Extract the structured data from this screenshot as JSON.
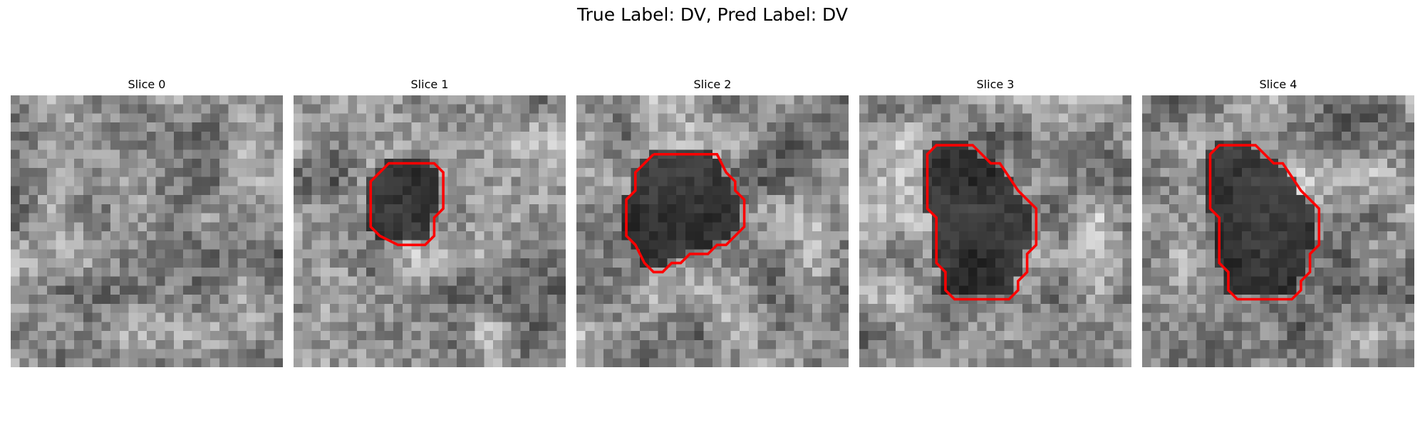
{
  "figure": {
    "title": "True Label: DV, Pred Label: DV",
    "colormap": "gray",
    "contour_color": "#ff0000"
  },
  "panels": [
    {
      "title": "Slice 0",
      "has_contour": false,
      "contour": []
    },
    {
      "title": "Slice 1",
      "has_contour": true,
      "contour": [
        [
          12.5,
          7.5
        ],
        [
          15.5,
          7.5
        ],
        [
          16.5,
          8.5
        ],
        [
          16.5,
          12.5
        ],
        [
          15.5,
          13.5
        ],
        [
          15.5,
          15.5
        ],
        [
          14.5,
          16.5
        ],
        [
          11.5,
          16.5
        ],
        [
          9.5,
          15.5
        ],
        [
          8.5,
          14.5
        ],
        [
          8.5,
          9.5
        ],
        [
          10.5,
          7.5
        ],
        [
          12.5,
          7.5
        ]
      ]
    },
    {
      "title": "Slice 2",
      "has_contour": true,
      "contour": [
        [
          8.5,
          6.5
        ],
        [
          15.5,
          6.5
        ],
        [
          16.5,
          8.5
        ],
        [
          17.5,
          9.5
        ],
        [
          17.5,
          10.5
        ],
        [
          18.5,
          11.5
        ],
        [
          18.5,
          14.5
        ],
        [
          17.5,
          15.5
        ],
        [
          16.5,
          16.5
        ],
        [
          15.5,
          16.5
        ],
        [
          14.5,
          17.5
        ],
        [
          12.5,
          17.5
        ],
        [
          11.5,
          18.5
        ],
        [
          10.5,
          18.5
        ],
        [
          9.5,
          19.5
        ],
        [
          8.5,
          19.5
        ],
        [
          7.5,
          18.5
        ],
        [
          6.5,
          16.5
        ],
        [
          5.5,
          15.5
        ],
        [
          5.5,
          11.5
        ],
        [
          6.5,
          10.5
        ],
        [
          6.5,
          8.5
        ],
        [
          7.5,
          7.5
        ],
        [
          8.5,
          6.5
        ]
      ]
    },
    {
      "title": "Slice 3",
      "has_contour": true,
      "contour": [
        [
          9.5,
          5.5
        ],
        [
          12.5,
          5.5
        ],
        [
          13.5,
          6.5
        ],
        [
          14.5,
          7.5
        ],
        [
          15.5,
          7.5
        ],
        [
          17.5,
          10.5
        ],
        [
          18.5,
          11.5
        ],
        [
          19.5,
          12.5
        ],
        [
          19.5,
          16.5
        ],
        [
          18.5,
          17.5
        ],
        [
          18.5,
          19.5
        ],
        [
          17.5,
          20.5
        ],
        [
          17.5,
          21.5
        ],
        [
          16.5,
          22.5
        ],
        [
          10.5,
          22.5
        ],
        [
          9.5,
          21.5
        ],
        [
          9.5,
          19.5
        ],
        [
          8.5,
          18.5
        ],
        [
          8.5,
          13.5
        ],
        [
          7.5,
          12.5
        ],
        [
          7.5,
          6.5
        ],
        [
          8.5,
          5.5
        ],
        [
          9.5,
          5.5
        ]
      ]
    },
    {
      "title": "Slice 4",
      "has_contour": true,
      "contour": [
        [
          9.5,
          5.5
        ],
        [
          12.5,
          5.5
        ],
        [
          13.5,
          6.5
        ],
        [
          14.5,
          7.5
        ],
        [
          15.5,
          7.5
        ],
        [
          17.5,
          10.5
        ],
        [
          18.5,
          11.5
        ],
        [
          19.5,
          12.5
        ],
        [
          19.5,
          16.5
        ],
        [
          18.5,
          17.5
        ],
        [
          18.5,
          19.5
        ],
        [
          17.5,
          20.5
        ],
        [
          17.5,
          21.5
        ],
        [
          16.5,
          22.5
        ],
        [
          10.5,
          22.5
        ],
        [
          9.5,
          21.5
        ],
        [
          9.5,
          19.5
        ],
        [
          8.5,
          18.5
        ],
        [
          8.5,
          13.5
        ],
        [
          7.5,
          12.5
        ],
        [
          7.5,
          6.5
        ],
        [
          8.5,
          5.5
        ],
        [
          9.5,
          5.5
        ]
      ]
    }
  ]
}
